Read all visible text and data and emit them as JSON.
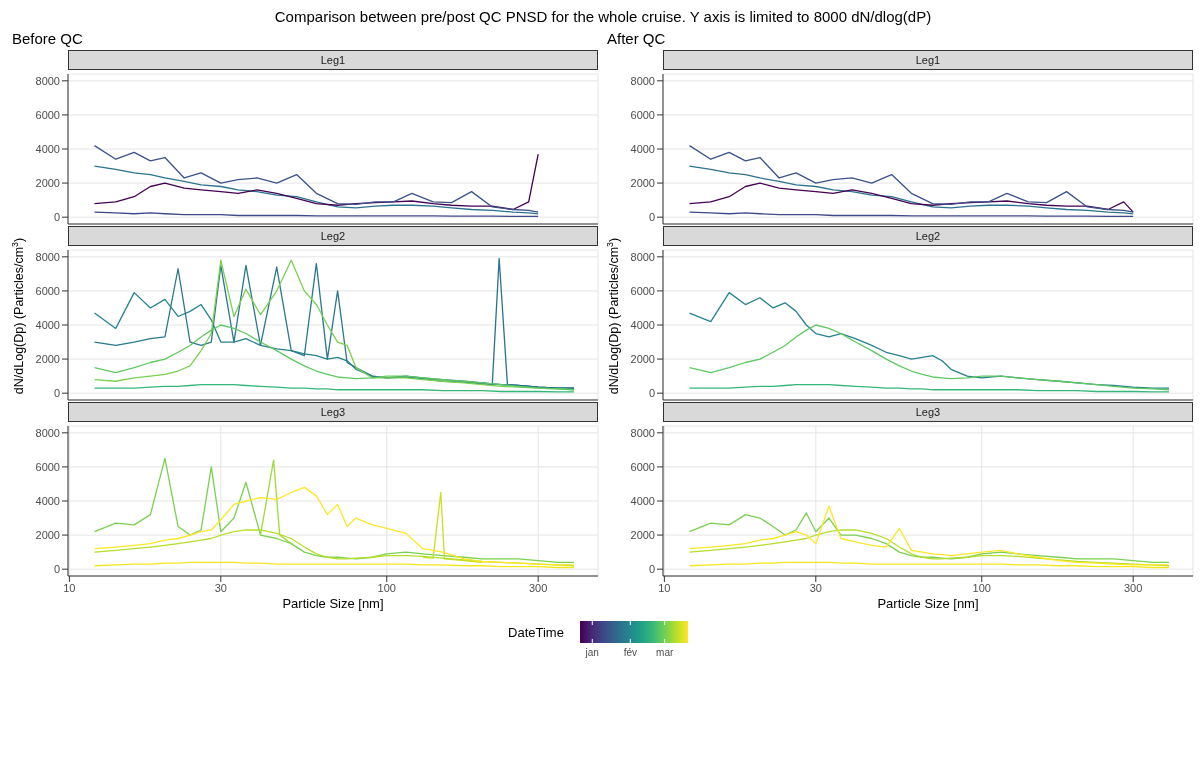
{
  "chart_data": [
    {
      "type": "line",
      "title": "Leg1",
      "subtitle": "Before QC",
      "annotations": [
        "Comparison between pre/post QC PNSD for the whole cruise. Y axis is limited to 8000 dN/dlog(dP)"
      ],
      "log": "x",
      "grid": true,
      "tick_labels": "y",
      "xlim": [
        9.9,
        463
      ],
      "xticks": [
        10,
        30,
        100,
        300
      ],
      "ylim": [
        -400,
        8400
      ],
      "yticks": [
        0,
        2000,
        4000,
        6000,
        8000
      ],
      "x": [
        12,
        14,
        16,
        18,
        20,
        23,
        26,
        30,
        34,
        39,
        45,
        52,
        60,
        70,
        80,
        92,
        105,
        120,
        140,
        160,
        185,
        215,
        250,
        280,
        300
      ],
      "series": [
        {
          "color": "#2c728e",
          "values": [
            3000,
            2800,
            2600,
            2500,
            2300,
            2100,
            1900,
            1800,
            1600,
            1500,
            1300,
            1200,
            900,
            600,
            550,
            650,
            700,
            700,
            650,
            550,
            450,
            400,
            300,
            250,
            200
          ]
        },
        {
          "color": "#3e4989",
          "values": [
            300,
            250,
            200,
            250,
            200,
            150,
            150,
            150,
            100,
            100,
            100,
            100,
            80,
            80,
            80,
            80,
            80,
            80,
            80,
            60,
            60,
            60,
            50,
            50,
            50
          ]
        },
        {
          "color": "#440154",
          "values": [
            800,
            900,
            1200,
            1800,
            2000,
            1700,
            1600,
            1500,
            1400,
            1600,
            1400,
            1100,
            800,
            700,
            800,
            850,
            900,
            950,
            800,
            700,
            650,
            650,
            450,
            900,
            3700
          ]
        },
        {
          "color": "#3b528b",
          "values": [
            4200,
            3400,
            3800,
            3300,
            3500,
            2300,
            2600,
            2000,
            2200,
            2300,
            2000,
            2500,
            1400,
            800,
            750,
            900,
            900,
            1400,
            900,
            850,
            1500,
            600,
            450,
            400,
            300
          ]
        }
      ]
    },
    {
      "type": "line",
      "title": "Leg2",
      "ylabel": "dN/dLog(Dp) (Particles/cm$^{3}$)",
      "log": "x",
      "grid": true,
      "tick_labels": "y",
      "xlim": [
        9.9,
        463
      ],
      "xticks": [
        10,
        30,
        100,
        300
      ],
      "ylim": [
        -400,
        8400
      ],
      "yticks": [
        0,
        2000,
        4000,
        6000,
        8000
      ],
      "x": [
        12,
        14,
        16,
        18,
        20,
        22,
        24,
        26,
        28,
        30,
        33,
        36,
        40,
        45,
        50,
        55,
        60,
        65,
        70,
        75,
        80,
        90,
        100,
        115,
        130,
        150,
        175,
        200,
        230,
        260,
        300,
        345,
        389
      ],
      "series": [
        {
          "color": "#26828e",
          "values": [
            4700,
            3800,
            5900,
            5000,
            5500,
            4500,
            4800,
            5200,
            4300,
            3000,
            3000,
            3200,
            2800,
            2600,
            2500,
            2300,
            2200,
            2000,
            2100,
            1900,
            1400,
            1000,
            900,
            1000,
            900,
            800,
            700,
            600,
            500,
            450,
            350,
            300,
            300
          ]
        },
        {
          "color": "#2a788e",
          "values": [
            3000,
            2800,
            3000,
            3200,
            3300,
            7300,
            3000,
            2800,
            3000,
            7500,
            3000,
            7500,
            2800,
            7400,
            2500,
            2200,
            7600,
            2000,
            6000,
            1800,
            1500,
            1000,
            900,
            950,
            850,
            700,
            650,
            550,
            500,
            450,
            350,
            300,
            300
          ]
        },
        {
          "color": "#2c728e",
          "x": [
            200,
            215,
            226,
            240,
            300,
            345,
            389
          ],
          "values": [
            600,
            500,
            7900,
            500,
            350,
            300,
            300
          ]
        },
        {
          "color": "#7ad151",
          "values": [
            800,
            700,
            900,
            1000,
            1100,
            1300,
            1600,
            2500,
            3500,
            7800,
            4500,
            6100,
            4600,
            6000,
            7800,
            6000,
            5200,
            4000,
            3000,
            2800,
            1500,
            900,
            900,
            900,
            800,
            700,
            600,
            500,
            400,
            350,
            300,
            250,
            200
          ]
        },
        {
          "color": "#5ec962",
          "values": [
            1500,
            1200,
            1500,
            1800,
            2000,
            2400,
            2800,
            3300,
            3700,
            4000,
            3800,
            3500,
            3000,
            2500,
            2000,
            1600,
            1300,
            1100,
            950,
            900,
            850,
            900,
            1000,
            1000,
            900,
            800,
            700,
            600,
            500,
            400,
            300,
            250,
            200
          ]
        },
        {
          "color": "#35b779",
          "values": [
            300,
            300,
            300,
            350,
            400,
            400,
            450,
            500,
            500,
            500,
            500,
            450,
            400,
            350,
            300,
            300,
            250,
            250,
            200,
            200,
            200,
            200,
            200,
            200,
            200,
            150,
            150,
            150,
            100,
            100,
            100,
            80,
            80
          ]
        }
      ]
    },
    {
      "type": "line",
      "title": "Leg3",
      "xlabel": "Particle Size [nm]",
      "clabel": "DateTime",
      "clim": [
        -10,
        78
      ],
      "cticks": [
        {
          "value": 0,
          "label": "jan"
        },
        {
          "value": 31,
          "label": "fév"
        },
        {
          "value": 59,
          "label": "mar"
        }
      ],
      "log": "x",
      "grid": true,
      "xlim": [
        9.9,
        463
      ],
      "xticks": [
        10,
        30,
        100,
        300
      ],
      "ylim": [
        -400,
        8400
      ],
      "yticks": [
        0,
        2000,
        4000,
        6000,
        8000
      ],
      "x": [
        12,
        14,
        16,
        18,
        20,
        22,
        24,
        26,
        28,
        30,
        33,
        36,
        40,
        45,
        50,
        55,
        60,
        65,
        70,
        75,
        80,
        90,
        100,
        115,
        130,
        150,
        175,
        200,
        230,
        260,
        300,
        345,
        389
      ],
      "series": [
        {
          "color": "#7ad151",
          "values": [
            2200,
            2700,
            2600,
            3200,
            6500,
            2500,
            2000,
            2300,
            6000,
            2200,
            3000,
            5100,
            2000,
            1800,
            1500,
            1000,
            800,
            700,
            700,
            650,
            600,
            700,
            900,
            1000,
            900,
            800,
            700,
            600,
            600,
            600,
            500,
            400,
            400
          ]
        },
        {
          "color": "#a0da39",
          "x": [
            40,
            44,
            46,
            50
          ],
          "values": [
            2000,
            6400,
            2000,
            1500
          ]
        },
        {
          "color": "#c8e020",
          "x": [
            130,
            140,
            148,
            152,
            175,
            200
          ],
          "values": [
            700,
            650,
            4500,
            600,
            500,
            400
          ]
        },
        {
          "color": "#b5de2b",
          "values": [
            1000,
            1100,
            1200,
            1300,
            1400,
            1500,
            1600,
            1700,
            1800,
            2000,
            2200,
            2300,
            2300,
            2100,
            1800,
            1300,
            900,
            700,
            600,
            600,
            650,
            700,
            800,
            800,
            750,
            650,
            550,
            450,
            400,
            350,
            300,
            250,
            200
          ]
        },
        {
          "color": "#fde725",
          "values": [
            1200,
            1300,
            1400,
            1500,
            1700,
            1800,
            2000,
            2200,
            2300,
            2900,
            3800,
            4000,
            4200,
            4100,
            4500,
            4800,
            4300,
            3200,
            3800,
            2500,
            3000,
            2600,
            2400,
            2100,
            1200,
            1000,
            600,
            450,
            400,
            350,
            300,
            250,
            250
          ]
        },
        {
          "color": "#f4e61e",
          "values": [
            200,
            250,
            300,
            300,
            350,
            350,
            400,
            400,
            400,
            400,
            400,
            350,
            350,
            300,
            300,
            300,
            300,
            300,
            300,
            300,
            300,
            300,
            300,
            300,
            250,
            250,
            200,
            200,
            150,
            150,
            150,
            100,
            100
          ]
        }
      ]
    },
    {
      "type": "line",
      "title": "Leg1",
      "subtitle": "After QC",
      "log": "x",
      "grid": true,
      "tick_labels": "y",
      "xlim": [
        9.9,
        463
      ],
      "xticks": [
        10,
        30,
        100,
        300
      ],
      "ylim": [
        -400,
        8400
      ],
      "yticks": [
        0,
        2000,
        4000,
        6000,
        8000
      ],
      "x": [
        12,
        14,
        16,
        18,
        20,
        23,
        26,
        30,
        34,
        39,
        45,
        52,
        60,
        70,
        80,
        92,
        105,
        120,
        140,
        160,
        185,
        215,
        250,
        280,
        300
      ],
      "series": [
        {
          "color": "#2c728e",
          "values": [
            3000,
            2800,
            2600,
            2500,
            2300,
            2100,
            1900,
            1800,
            1600,
            1500,
            1300,
            1200,
            900,
            600,
            550,
            650,
            700,
            700,
            650,
            550,
            450,
            400,
            300,
            250,
            200
          ]
        },
        {
          "color": "#3e4989",
          "values": [
            300,
            250,
            200,
            250,
            200,
            150,
            150,
            150,
            100,
            100,
            100,
            100,
            80,
            80,
            80,
            80,
            80,
            80,
            80,
            60,
            60,
            60,
            50,
            50,
            50
          ]
        },
        {
          "color": "#440154",
          "values": [
            800,
            900,
            1200,
            1800,
            2000,
            1700,
            1600,
            1500,
            1400,
            1600,
            1400,
            1100,
            800,
            700,
            800,
            850,
            900,
            950,
            800,
            700,
            650,
            650,
            450,
            900,
            300
          ]
        },
        {
          "color": "#3b528b",
          "values": [
            4200,
            3400,
            3800,
            3300,
            3500,
            2300,
            2600,
            2000,
            2200,
            2300,
            2000,
            2500,
            1400,
            800,
            750,
            900,
            900,
            1400,
            900,
            850,
            1500,
            600,
            450,
            400,
            300
          ]
        }
      ]
    },
    {
      "type": "line",
      "title": "Leg2",
      "ylabel": "dN/dLog(Dp) (Particles/cm$^{3}$)",
      "log": "x",
      "grid": true,
      "tick_labels": "y",
      "xlim": [
        9.9,
        463
      ],
      "xticks": [
        10,
        30,
        100,
        300
      ],
      "ylim": [
        -400,
        8400
      ],
      "yticks": [
        0,
        2000,
        4000,
        6000,
        8000
      ],
      "x": [
        12,
        14,
        16,
        18,
        20,
        22,
        24,
        26,
        28,
        30,
        33,
        36,
        40,
        45,
        50,
        55,
        60,
        65,
        70,
        75,
        80,
        90,
        100,
        115,
        130,
        150,
        175,
        200,
        230,
        260,
        300,
        345,
        389
      ],
      "series": [
        {
          "color": "#26828e",
          "values": [
            4700,
            4200,
            5900,
            5200,
            5600,
            5000,
            5300,
            4800,
            4000,
            3500,
            3300,
            3500,
            3200,
            2800,
            2400,
            2200,
            2000,
            2100,
            2200,
            1900,
            1400,
            1000,
            900,
            1000,
            900,
            800,
            700,
            600,
            500,
            450,
            350,
            300,
            300
          ]
        },
        {
          "color": "#5ec962",
          "values": [
            1500,
            1200,
            1500,
            1800,
            2000,
            2400,
            2800,
            3300,
            3700,
            4000,
            3800,
            3500,
            3000,
            2500,
            2000,
            1600,
            1300,
            1100,
            950,
            900,
            850,
            900,
            1000,
            1000,
            900,
            800,
            700,
            600,
            500,
            400,
            300,
            250,
            200
          ]
        },
        {
          "color": "#35b779",
          "values": [
            300,
            300,
            300,
            350,
            400,
            400,
            450,
            500,
            500,
            500,
            500,
            450,
            400,
            350,
            300,
            300,
            250,
            250,
            200,
            200,
            200,
            200,
            200,
            200,
            200,
            150,
            150,
            150,
            100,
            100,
            100,
            80,
            80
          ]
        }
      ]
    },
    {
      "type": "line",
      "title": "Leg3",
      "xlabel": "Particle Size [nm]",
      "log": "x",
      "grid": true,
      "xlim": [
        9.9,
        463
      ],
      "xticks": [
        10,
        30,
        100,
        300
      ],
      "ylim": [
        -400,
        8400
      ],
      "yticks": [
        0,
        2000,
        4000,
        6000,
        8000
      ],
      "x": [
        12,
        14,
        16,
        18,
        20,
        22,
        24,
        26,
        28,
        30,
        33,
        36,
        40,
        45,
        50,
        55,
        60,
        65,
        70,
        75,
        80,
        90,
        100,
        115,
        130,
        150,
        175,
        200,
        230,
        260,
        300,
        345,
        389
      ],
      "series": [
        {
          "color": "#7ad151",
          "values": [
            2200,
            2700,
            2600,
            3200,
            3000,
            2500,
            2000,
            2300,
            3300,
            2200,
            3000,
            2000,
            2000,
            1800,
            1500,
            1000,
            800,
            700,
            700,
            650,
            600,
            700,
            900,
            1000,
            900,
            800,
            700,
            600,
            600,
            600,
            500,
            400,
            400
          ]
        },
        {
          "color": "#b5de2b",
          "values": [
            1000,
            1100,
            1200,
            1300,
            1400,
            1500,
            1600,
            1700,
            1800,
            2000,
            2200,
            2300,
            2300,
            2100,
            1800,
            1300,
            900,
            700,
            600,
            600,
            650,
            700,
            800,
            800,
            750,
            650,
            550,
            450,
            400,
            350,
            300,
            250,
            200
          ]
        },
        {
          "color": "#fde725",
          "values": [
            1200,
            1300,
            1400,
            1500,
            1700,
            1800,
            2000,
            2200,
            2000,
            1500,
            3700,
            1800,
            1600,
            1400,
            1300,
            2400,
            1100,
            1000,
            900,
            850,
            800,
            900,
            1000,
            1100,
            900,
            700,
            500,
            400,
            350,
            300,
            250,
            250,
            250
          ]
        },
        {
          "color": "#f4e61e",
          "values": [
            200,
            250,
            300,
            300,
            350,
            350,
            400,
            400,
            400,
            400,
            400,
            350,
            350,
            300,
            300,
            300,
            300,
            300,
            300,
            300,
            300,
            300,
            300,
            300,
            250,
            250,
            200,
            200,
            150,
            150,
            150,
            100,
            100
          ]
        }
      ]
    }
  ]
}
